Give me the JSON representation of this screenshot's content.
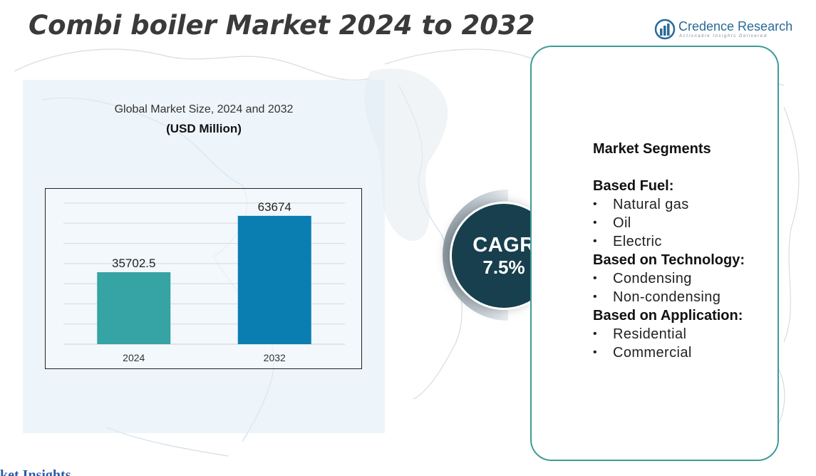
{
  "header": {
    "title": "Combi boiler Market 2024 to 2032"
  },
  "logo": {
    "name": "Credence Research",
    "tagline": "Actionable Insights Delivered"
  },
  "chart_panel": {
    "heading": "Global Market Size,  2024 and 2032",
    "unit": "(USD Million)"
  },
  "chart_data": {
    "type": "bar",
    "categories": [
      "2024",
      "2032"
    ],
    "values": [
      35702.5,
      63674
    ],
    "value_labels": [
      "35702.5",
      "63674"
    ],
    "colors": [
      "#36a3a4",
      "#0b7eb1"
    ],
    "ylim": [
      0,
      70000
    ],
    "grid": true
  },
  "cagr": {
    "label": "CAGR",
    "value": "7.5%"
  },
  "segments": {
    "title": "Market Segments",
    "groups": [
      {
        "title": "Based Fuel:",
        "items": [
          "Natural gas",
          "Oil",
          "Electric"
        ]
      },
      {
        "title": "Based on Technology:",
        "items": [
          "Condensing",
          "Non-condensing"
        ]
      },
      {
        "title": "Based on Application:",
        "items": [
          "Residential",
          "Commercial"
        ]
      }
    ]
  },
  "footer": {
    "partial_text": "ket Insights"
  }
}
